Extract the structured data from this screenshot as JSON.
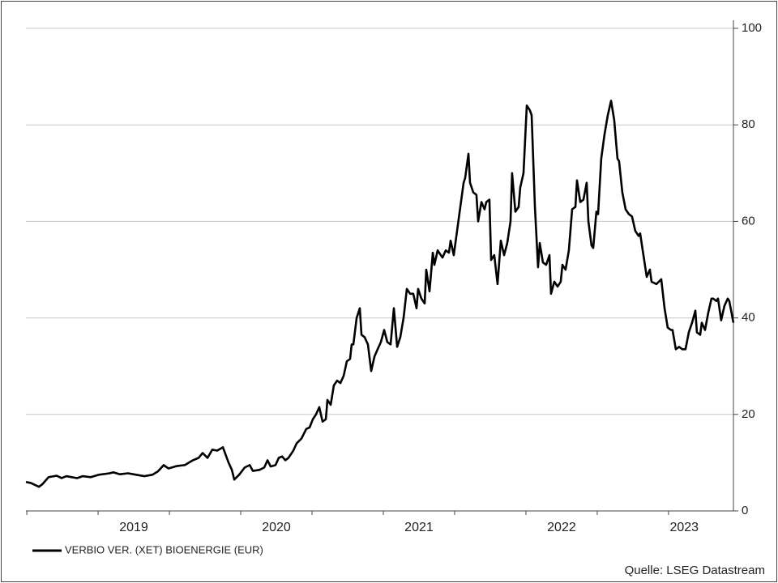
{
  "chart_data": {
    "type": "line",
    "source": "Quelle: LSEG Datastream",
    "x": [
      2018.744,
      2018.778,
      2018.835,
      2018.858,
      2018.903,
      2018.96,
      2018.994,
      2019.028,
      2019.102,
      2019.142,
      2019.199,
      2019.256,
      2019.33,
      2019.358,
      2019.403,
      2019.46,
      2019.517,
      2019.574,
      2019.631,
      2019.67,
      2019.71,
      2019.744,
      2019.801,
      2019.858,
      2019.915,
      2019.955,
      2019.983,
      2020.017,
      2020.051,
      2020.085,
      2020.125,
      2020.165,
      2020.188,
      2020.205,
      2020.239,
      2020.278,
      2020.313,
      2020.335,
      2020.381,
      2020.415,
      2020.438,
      2020.46,
      2020.494,
      2020.517,
      2020.54,
      2020.563,
      2020.585,
      2020.619,
      2020.642,
      2020.676,
      2020.71,
      2020.733,
      2020.756,
      2020.778,
      2020.801,
      2020.824,
      2020.847,
      2020.858,
      2020.881,
      2020.903,
      2020.926,
      2020.949,
      2020.972,
      2020.994,
      2021.017,
      2021.028,
      2021.04,
      2021.063,
      2021.085,
      2021.097,
      2021.119,
      2021.142,
      2021.165,
      2021.188,
      2021.21,
      2021.233,
      2021.256,
      2021.278,
      2021.301,
      2021.324,
      2021.347,
      2021.369,
      2021.392,
      2021.415,
      2021.438,
      2021.46,
      2021.483,
      2021.494,
      2021.517,
      2021.54,
      2021.551,
      2021.574,
      2021.597,
      2021.608,
      2021.631,
      2021.653,
      2021.665,
      2021.688,
      2021.71,
      2021.722,
      2021.744,
      2021.767,
      2021.79,
      2021.813,
      2021.824,
      2021.847,
      2021.858,
      2021.881,
      2021.903,
      2021.915,
      2021.938,
      2021.96,
      2021.972,
      2021.994,
      2022.006,
      2022.028,
      2022.051,
      2022.074,
      2022.097,
      2022.119,
      2022.142,
      2022.153,
      2022.176,
      2022.199,
      2022.21,
      2022.233,
      2022.256,
      2022.278,
      2022.29,
      2022.313,
      2022.335,
      2022.347,
      2022.369,
      2022.392,
      2022.415,
      2022.426,
      2022.449,
      2022.472,
      2022.494,
      2022.506,
      2022.528,
      2022.551,
      2022.574,
      2022.597,
      2022.608,
      2022.631,
      2022.653,
      2022.676,
      2022.688,
      2022.71,
      2022.722,
      2022.744,
      2022.756,
      2022.778,
      2022.801,
      2022.824,
      2022.847,
      2022.869,
      2022.892,
      2022.903,
      2022.926,
      2022.949,
      2022.972,
      2022.994,
      2023.017,
      2023.04,
      2023.051,
      2023.074,
      2023.097,
      2023.119,
      2023.131,
      2023.165,
      2023.199,
      2023.222,
      2023.244,
      2023.267,
      2023.278,
      2023.301,
      2023.324,
      2023.347,
      2023.369,
      2023.392,
      2023.415,
      2023.438,
      2023.449,
      2023.472,
      2023.483,
      2023.506,
      2023.528,
      2023.551,
      2023.563,
      2023.585,
      2023.597,
      2023.619,
      2023.642,
      2023.665,
      2023.676,
      2023.705
    ],
    "series": [
      {
        "name": "VERBIO VER. (XET) BIOENERGIE (EUR)",
        "color": "#000000",
        "values": [
          6,
          5.8,
          5,
          5.5,
          7,
          7.3,
          6.8,
          7.2,
          6.8,
          7.2,
          7,
          7.5,
          7.8,
          8,
          7.6,
          7.8,
          7.5,
          7.2,
          7.5,
          8.2,
          9.5,
          8.8,
          9.3,
          9.5,
          10.5,
          11,
          12,
          11,
          12.7,
          12.5,
          13.2,
          10,
          8.5,
          6.5,
          7.5,
          9,
          9.5,
          8.3,
          8.5,
          9,
          10.5,
          9.2,
          9.5,
          11,
          11.3,
          10.5,
          11,
          12.5,
          14,
          15,
          17,
          17.3,
          19,
          20,
          21.5,
          18.5,
          19,
          23,
          22,
          26,
          27,
          26.5,
          28,
          31,
          31.5,
          34.5,
          34.5,
          40,
          42,
          36.5,
          36,
          34.5,
          29,
          32,
          33.5,
          35,
          37.5,
          35,
          34.5,
          42,
          34,
          36,
          40,
          46,
          45,
          45,
          42,
          46,
          44,
          43,
          50,
          45.5,
          53.5,
          51,
          54,
          53,
          52.5,
          54,
          53.5,
          56,
          53,
          58,
          63,
          68,
          69,
          74,
          68,
          66,
          65.5,
          60,
          64,
          62.5,
          64,
          64.5,
          52,
          53,
          47,
          56,
          53,
          55.5,
          60,
          70,
          62,
          63,
          67,
          70,
          84,
          83,
          82,
          63,
          50.5,
          55.5,
          51.5,
          51,
          53,
          45,
          47.5,
          46.5,
          47.5,
          51,
          50,
          54,
          62.5,
          63,
          68.5,
          64,
          64.5,
          68,
          60,
          55,
          54.5,
          62,
          61.5,
          73,
          78,
          82,
          85,
          81,
          73,
          72.5,
          66,
          62.5,
          61.5,
          61,
          58,
          57,
          57.5,
          53,
          48.5,
          50,
          47.5,
          47,
          48,
          42,
          38,
          37.5,
          37.5,
          33.5,
          34,
          33.5,
          33.5,
          37,
          39,
          41.5,
          37,
          36.5,
          39,
          37.5,
          41,
          44,
          44,
          43.5,
          44,
          39.5,
          42.5,
          44,
          43.5,
          39
        ]
      }
    ],
    "xlim": [
      2018.744,
      2023.705
    ],
    "xticks": [
      2018.75,
      2019.25,
      2019.75,
      2020.25,
      2020.75,
      2021.25,
      2021.75,
      2022.25,
      2022.75,
      2023.25
    ],
    "year_labels": [
      {
        "value": 2019.5,
        "label": "2019"
      },
      {
        "value": 2020.5,
        "label": "2020"
      },
      {
        "value": 2021.5,
        "label": "2021"
      },
      {
        "value": 2022.5,
        "label": "2022"
      },
      {
        "value": 2023.36,
        "label": "2023"
      }
    ],
    "ylim": [
      0,
      100
    ],
    "yticks": [
      0,
      20,
      40,
      60,
      80,
      100
    ],
    "grid": true
  }
}
